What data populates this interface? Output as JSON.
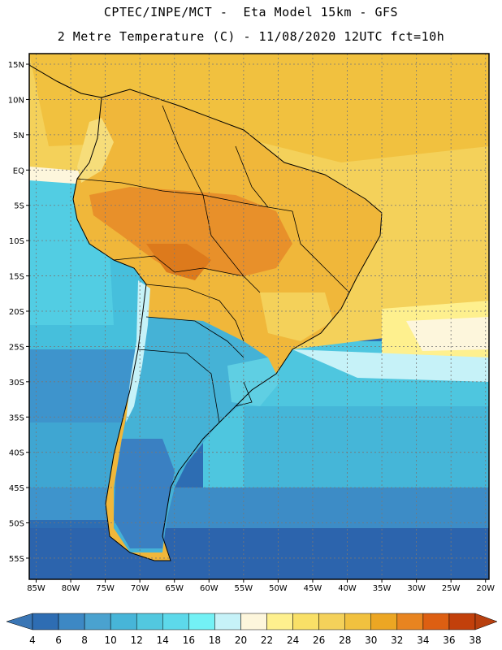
{
  "header": {
    "line1": "CPTEC/INPE/MCT -  Eta Model 15km - GFS",
    "line2": "2 Metre Temperature (C) - 11/08/2020 12UTC fct=10h"
  },
  "map": {
    "region": "South America",
    "lat_labels": [
      "15N",
      "10N",
      "5N",
      "EQ",
      "5S",
      "10S",
      "15S",
      "20S",
      "25S",
      "30S",
      "35S",
      "40S",
      "45S",
      "50S",
      "55S"
    ],
    "lon_labels": [
      "85W",
      "80W",
      "75W",
      "70W",
      "65W",
      "60W",
      "55W",
      "50W",
      "45W",
      "40W",
      "35W",
      "30W",
      "25W",
      "20W"
    ],
    "lat_range": [
      -58,
      16.5
    ],
    "lon_range": [
      -86,
      -19.5
    ],
    "colors": {
      "ocean_cold": "#2d6db3",
      "ocean_mid": "#45c2dc",
      "land_warm": "#f0b73a",
      "land_hot": "#e8902a"
    }
  },
  "colorbar": {
    "labels": [
      "4",
      "6",
      "8",
      "10",
      "12",
      "14",
      "16",
      "18",
      "20",
      "22",
      "24",
      "26",
      "28",
      "30",
      "32",
      "34",
      "36",
      "38"
    ],
    "colors": [
      "#3a76b5",
      "#2e6db3",
      "#3d88c4",
      "#4aa2cf",
      "#47b5d8",
      "#52c8df",
      "#5dd9ea",
      "#73f1f5",
      "#c6f2f8",
      "#fdf6dc",
      "#fef08e",
      "#f9e067",
      "#f4d15a",
      "#f1c13f",
      "#eca623",
      "#e88420",
      "#dd5f12",
      "#c2400b",
      "#b8400f"
    ]
  }
}
